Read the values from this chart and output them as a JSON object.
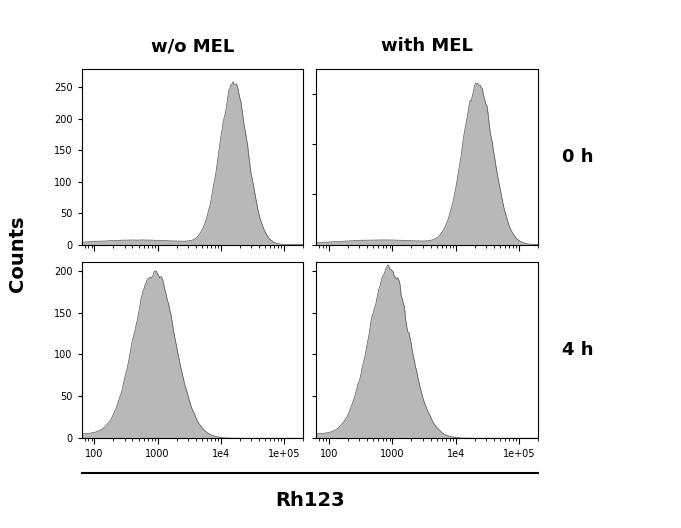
{
  "col_labels": [
    "w/o MEL",
    "with MEL"
  ],
  "row_labels": [
    "0 h",
    "4 h"
  ],
  "xlabel": "Rh123",
  "ylabel": "Counts",
  "background_color": "#ffffff",
  "hist_fill_color": "#b8b8b8",
  "hist_edge_color": "#555555",
  "xlim": [
    63,
    200000
  ],
  "panels": [
    {
      "row": 0,
      "col": 0,
      "peak_log10": 4.2,
      "peak_height": 260,
      "spread_log10": 0.22,
      "ylim": [
        0,
        280
      ],
      "yticks": [
        0,
        50,
        100,
        150,
        200,
        250
      ]
    },
    {
      "row": 0,
      "col": 1,
      "peak_log10": 4.35,
      "peak_height": 160,
      "spread_log10": 0.24,
      "ylim": [
        0,
        175
      ],
      "yticks": [
        0,
        50,
        100,
        150
      ]
    },
    {
      "row": 1,
      "col": 0,
      "peak_log10": 2.95,
      "peak_height": 200,
      "spread_log10": 0.32,
      "ylim": [
        0,
        210
      ],
      "yticks": [
        0,
        50,
        100,
        150,
        200
      ]
    },
    {
      "row": 1,
      "col": 1,
      "peak_log10": 2.95,
      "peak_height": 200,
      "spread_log10": 0.32,
      "ylim": [
        0,
        210
      ],
      "yticks": [
        0,
        50,
        100,
        150,
        200
      ]
    }
  ],
  "tick_fontsize": 7,
  "col_label_fontsize": 13,
  "row_label_fontsize": 13,
  "ylabel_fontsize": 14,
  "xlabel_fontsize": 14
}
